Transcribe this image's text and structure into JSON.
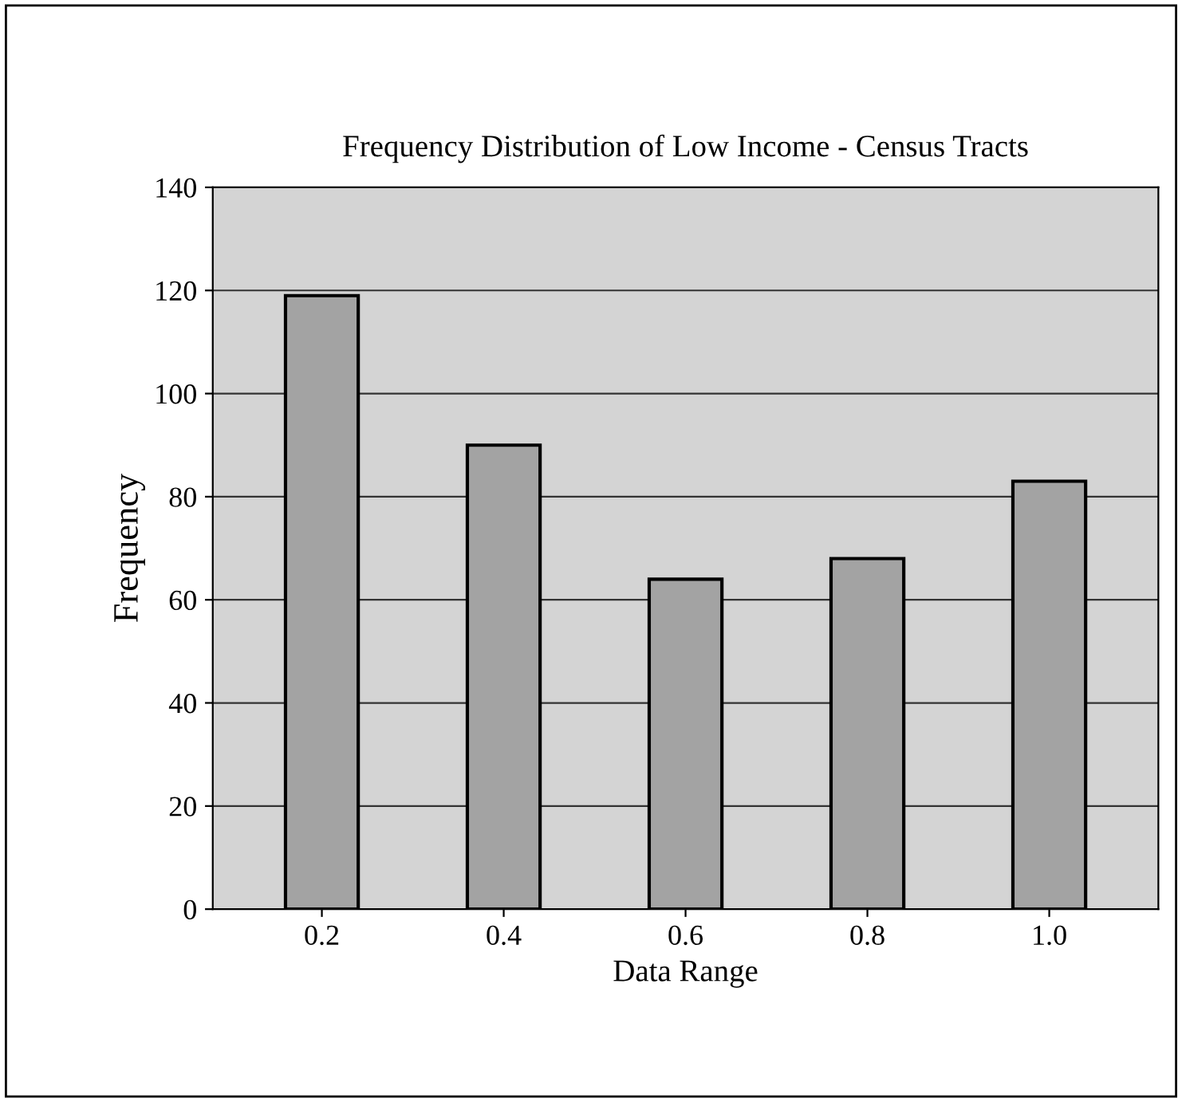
{
  "chart_data": {
    "type": "bar",
    "title": "Frequency Distribution of Low Income - Census Tracts",
    "xlabel": "Data Range",
    "ylabel": "Frequency",
    "categories": [
      "0.2",
      "0.4",
      "0.6",
      "0.8",
      "1.0"
    ],
    "values": [
      119,
      90,
      64,
      68,
      83
    ],
    "color": "#a3a3a3",
    "ylim": [
      0,
      140
    ],
    "yticks": [
      0,
      20,
      40,
      60,
      80,
      100,
      120,
      140
    ],
    "grid": "y",
    "legend": false
  }
}
